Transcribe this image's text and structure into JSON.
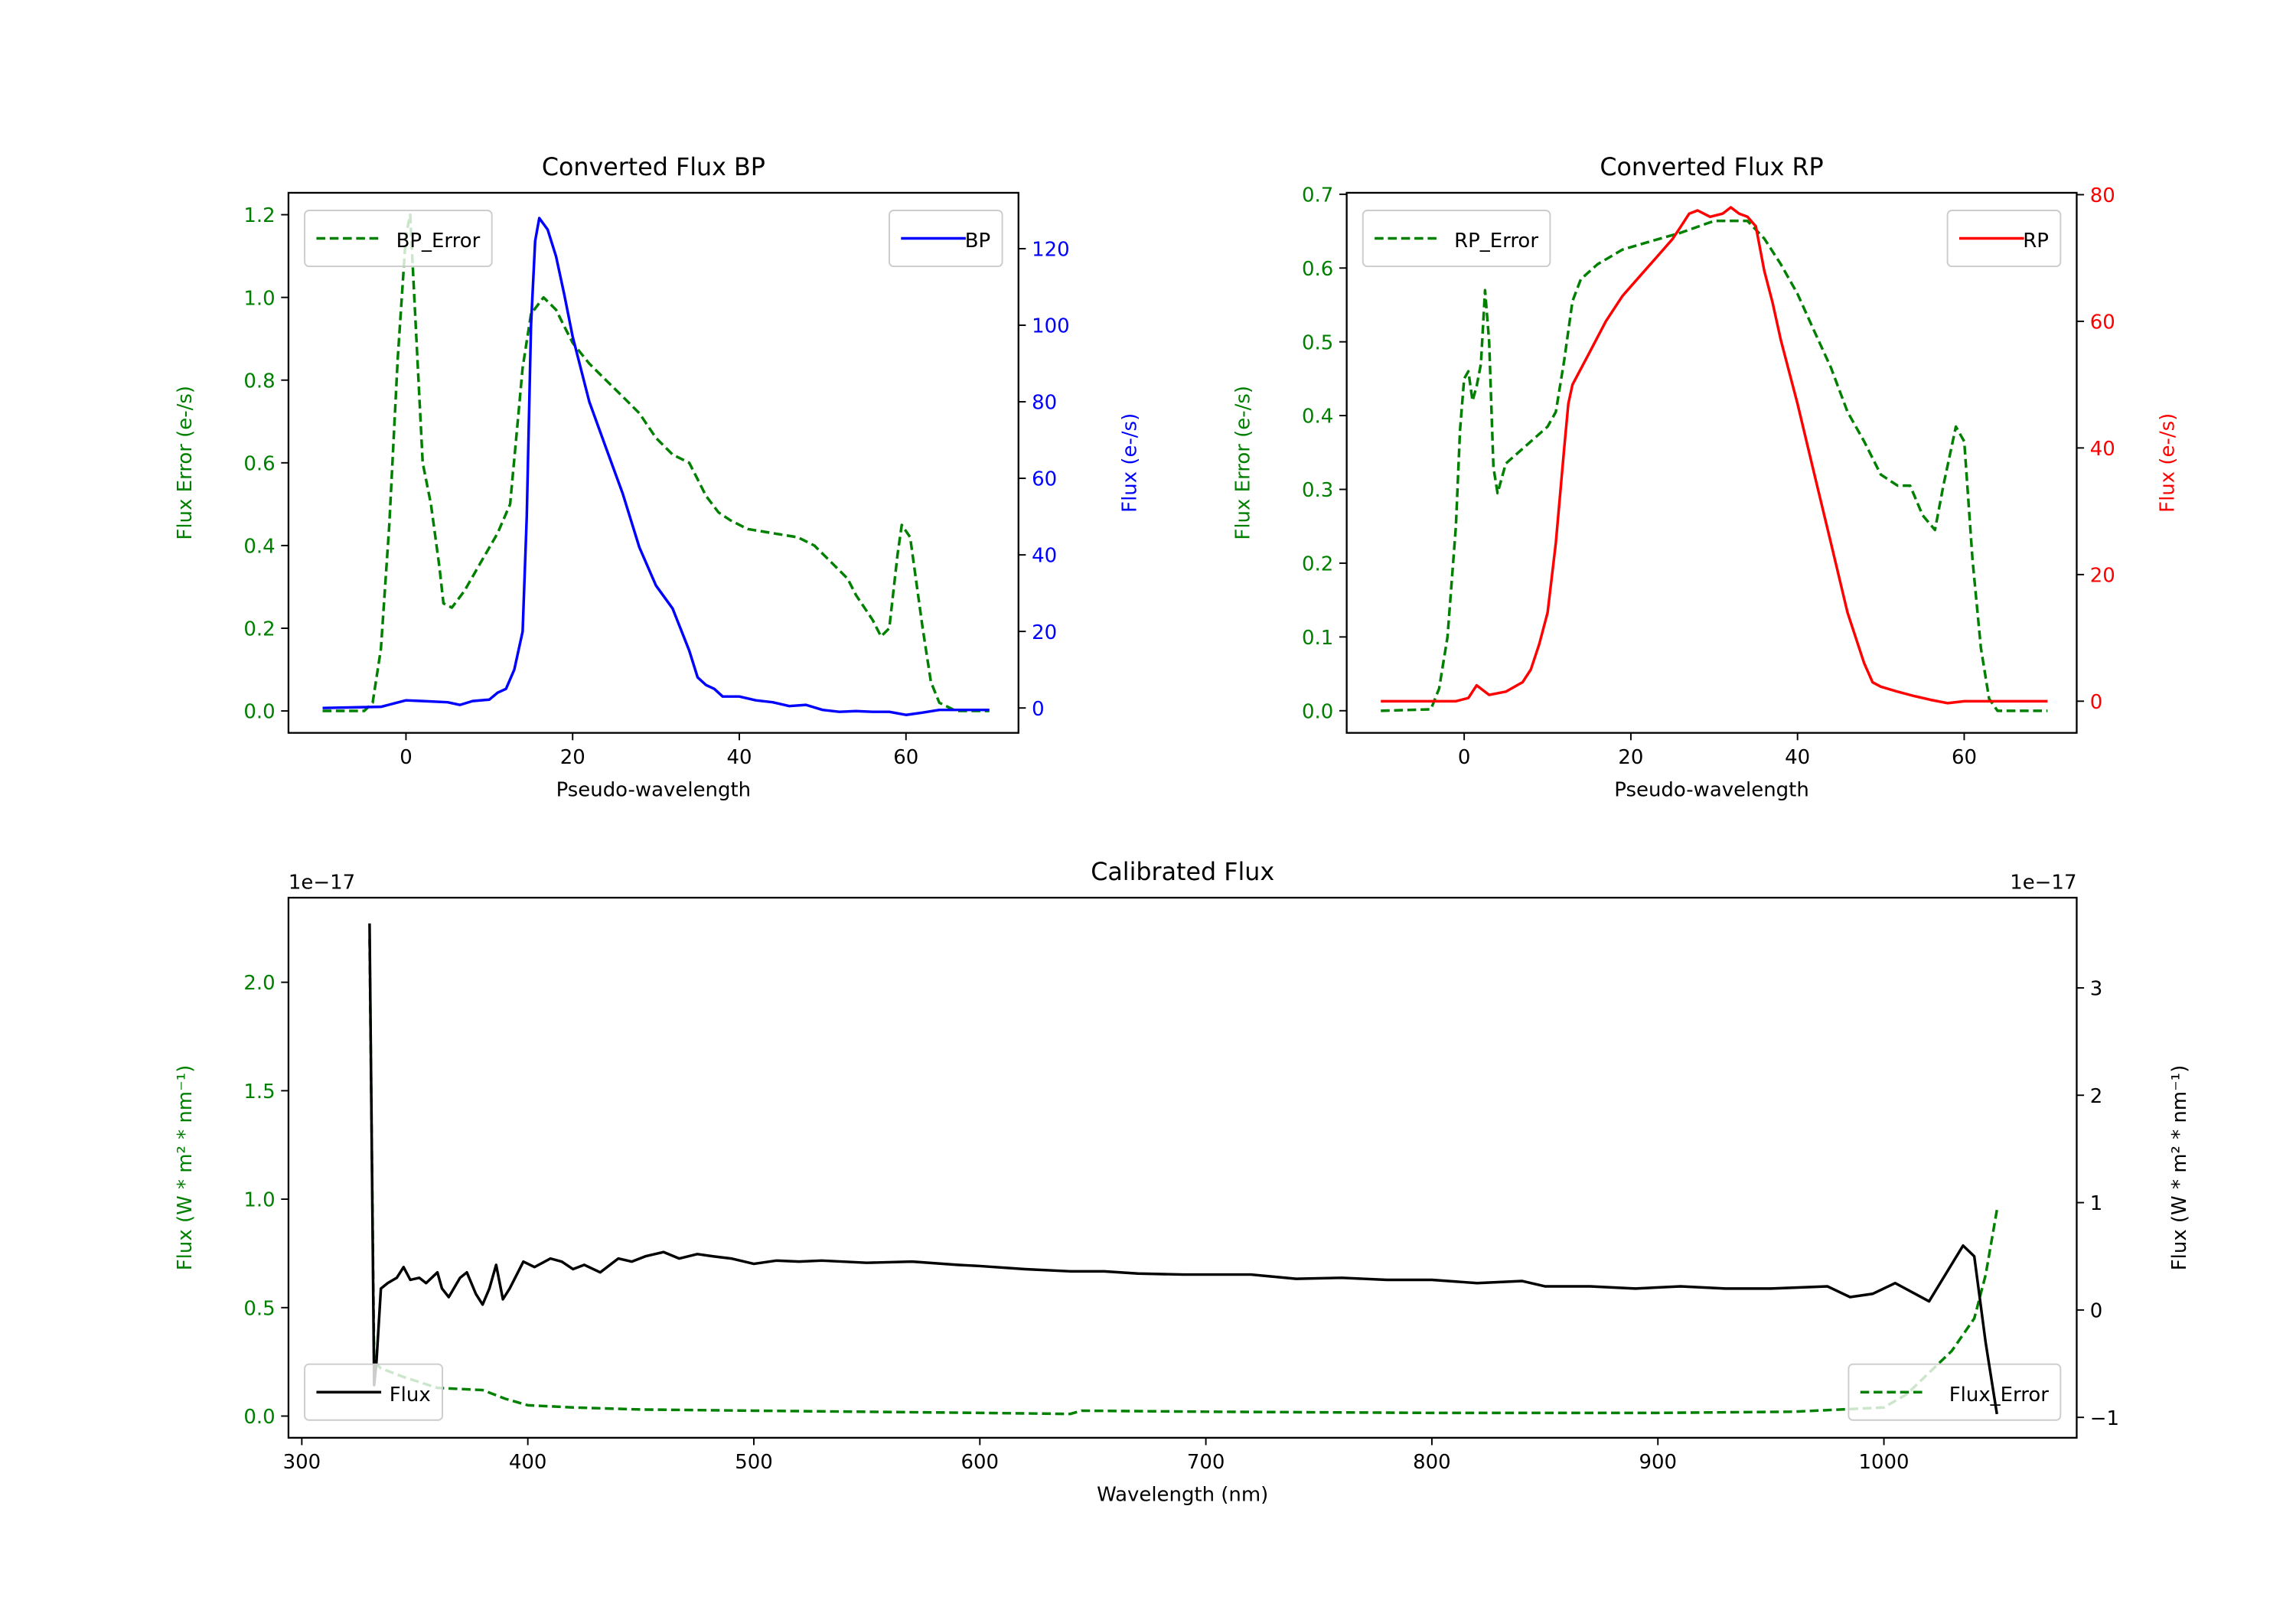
{
  "colors": {
    "bp": "#0000ff",
    "rp": "#ff0000",
    "error": "#008000",
    "flux": "#000000",
    "axis": "#000000",
    "legend_border": "#cccccc"
  },
  "chart_data": [
    {
      "id": "bp",
      "type": "line",
      "title": "Converted Flux BP",
      "xlabel": "Pseudo-wavelength",
      "ylabel_left": "Flux Error (e-/s)",
      "ylabel_right": "Flux (e-/s)",
      "xlim": [
        -14.1,
        73.5
      ],
      "ylim_left": [
        -0.053,
        1.253
      ],
      "ylim_right": [
        -6.5,
        134.6
      ],
      "xticks": [
        0,
        20,
        40,
        60
      ],
      "xtick_labels": [
        "0",
        "20",
        "40",
        "60"
      ],
      "yticks_left": [
        0,
        0.2,
        0.4,
        0.6,
        0.8,
        1.0,
        1.2
      ],
      "ytick_labels_left": [
        "0.0",
        "0.2",
        "0.4",
        "0.6",
        "0.8",
        "1.0",
        "1.2"
      ],
      "yticks_right": [
        0,
        20,
        40,
        60,
        80,
        100,
        120
      ],
      "ytick_labels_right": [
        "0",
        "20",
        "40",
        "60",
        "80",
        "100",
        "120"
      ],
      "left_color": "#008000",
      "right_color": "#0000ff",
      "legend_left": {
        "label": "BP_Error",
        "placement": "upper-left"
      },
      "legend_right": {
        "label": "BP",
        "placement": "upper-right"
      },
      "series_left": {
        "name": "BP_Error",
        "style": "dashed",
        "color": "#008000",
        "x": [
          -10,
          -5,
          -4,
          -3,
          -2,
          -1,
          0,
          0.5,
          1,
          2,
          3,
          4,
          4.5,
          5.5,
          7,
          9,
          11,
          12.5,
          13.5,
          14,
          15,
          16.5,
          18,
          19,
          20,
          22,
          24,
          26,
          28,
          30,
          32,
          34,
          35,
          36,
          37.5,
          39,
          41,
          44,
          47,
          49,
          51,
          53,
          54,
          55,
          56,
          57,
          58,
          59,
          59.5,
          60.5,
          62,
          63,
          64,
          66,
          70
        ],
        "y": [
          0,
          0,
          0.02,
          0.15,
          0.45,
          0.85,
          1.15,
          1.2,
          1.0,
          0.6,
          0.5,
          0.35,
          0.26,
          0.25,
          0.29,
          0.36,
          0.43,
          0.5,
          0.72,
          0.83,
          0.96,
          1.0,
          0.97,
          0.93,
          0.89,
          0.84,
          0.8,
          0.76,
          0.72,
          0.66,
          0.62,
          0.6,
          0.56,
          0.52,
          0.48,
          0.46,
          0.44,
          0.43,
          0.42,
          0.4,
          0.36,
          0.32,
          0.28,
          0.25,
          0.22,
          0.18,
          0.2,
          0.38,
          0.45,
          0.42,
          0.2,
          0.07,
          0.02,
          0,
          0
        ]
      },
      "series_right": {
        "name": "BP",
        "style": "solid",
        "color": "#0000ff",
        "x": [
          -10,
          -3,
          0,
          2,
          5,
          6.5,
          8,
          10,
          11,
          12,
          13,
          14,
          14.5,
          15,
          15.5,
          16,
          17,
          18,
          19,
          20,
          22,
          24,
          26,
          28,
          30,
          32,
          34,
          35,
          36,
          37,
          38,
          40,
          42,
          44,
          46,
          48,
          50,
          52,
          54,
          56,
          58,
          60,
          62,
          64,
          70
        ],
        "y": [
          0,
          0.3,
          2,
          1.8,
          1.5,
          0.8,
          1.8,
          2.2,
          4,
          5,
          10,
          20,
          50,
          100,
          122,
          128,
          125,
          118,
          108,
          97,
          80,
          68,
          56,
          42,
          32,
          26,
          15,
          8,
          6,
          5,
          3,
          3,
          2,
          1.5,
          0.5,
          0.8,
          -0.5,
          -1,
          -0.8,
          -1,
          -1,
          -1.8,
          -1.2,
          -0.5,
          -0.5
        ]
      }
    },
    {
      "id": "rp",
      "type": "line",
      "title": "Converted Flux RP",
      "xlabel": "Pseudo-wavelength",
      "ylabel_left": "Flux Error (e-/s)",
      "ylabel_right": "Flux (e-/s)",
      "xlim": [
        -14.1,
        73.5
      ],
      "ylim_left": [
        -0.03,
        0.702
      ],
      "ylim_right": [
        -5.0,
        80.3
      ],
      "xticks": [
        0,
        20,
        40,
        60
      ],
      "xtick_labels": [
        "0",
        "20",
        "40",
        "60"
      ],
      "yticks_left": [
        0,
        0.1,
        0.2,
        0.3,
        0.4,
        0.5,
        0.6,
        0.7
      ],
      "ytick_labels_left": [
        "0.0",
        "0.1",
        "0.2",
        "0.3",
        "0.4",
        "0.5",
        "0.6",
        "0.7"
      ],
      "yticks_right": [
        0,
        20,
        40,
        60,
        80
      ],
      "ytick_labels_right": [
        "0",
        "20",
        "40",
        "60",
        "80"
      ],
      "left_color": "#008000",
      "right_color": "#ff0000",
      "legend_left": {
        "label": "RP_Error",
        "placement": "upper-left"
      },
      "legend_right": {
        "label": "RP",
        "placement": "upper-right"
      },
      "series_left": {
        "name": "RP_Error",
        "style": "dashed",
        "color": "#008000",
        "x": [
          -10,
          -4,
          -3,
          -2,
          -1,
          -0.5,
          0,
          0.5,
          1,
          1.5,
          2,
          2.5,
          3,
          3.5,
          4,
          5,
          8,
          10,
          11,
          12,
          13,
          14,
          16,
          19,
          22,
          26,
          30,
          34,
          36,
          38,
          40,
          42,
          44,
          46,
          48,
          50,
          52,
          53.5,
          55,
          56.5,
          57.5,
          59,
          60,
          61,
          62,
          63,
          64,
          70
        ],
        "y": [
          0,
          0.002,
          0.03,
          0.1,
          0.25,
          0.38,
          0.45,
          0.46,
          0.42,
          0.44,
          0.47,
          0.57,
          0.5,
          0.33,
          0.295,
          0.335,
          0.365,
          0.385,
          0.405,
          0.475,
          0.555,
          0.585,
          0.605,
          0.625,
          0.635,
          0.648,
          0.664,
          0.664,
          0.64,
          0.605,
          0.565,
          0.515,
          0.465,
          0.405,
          0.365,
          0.32,
          0.305,
          0.305,
          0.265,
          0.245,
          0.305,
          0.385,
          0.365,
          0.205,
          0.085,
          0.016,
          0,
          0
        ]
      },
      "series_right": {
        "name": "RP",
        "style": "solid",
        "color": "#ff0000",
        "x": [
          -10,
          -1,
          0.5,
          1.5,
          3,
          5,
          7,
          8,
          9,
          10,
          11,
          12,
          12.5,
          13,
          15,
          17,
          19,
          21,
          23,
          25,
          26,
          27,
          28,
          29.5,
          31,
          32,
          33,
          34,
          35,
          36,
          37,
          38,
          40,
          42,
          44,
          46,
          48,
          49,
          50,
          52,
          54,
          56,
          58,
          60,
          70
        ],
        "y": [
          0,
          0,
          0.5,
          2.5,
          1,
          1.5,
          3,
          5,
          9,
          14,
          25,
          40,
          47,
          50,
          55,
          60,
          64,
          67,
          70,
          73,
          75,
          77,
          77.5,
          76.5,
          77,
          78,
          77,
          76.5,
          75,
          68,
          63,
          57,
          47,
          36,
          25,
          14,
          6,
          3,
          2.3,
          1.5,
          0.8,
          0.2,
          -0.3,
          0,
          0
        ]
      }
    },
    {
      "id": "calibrated",
      "type": "line",
      "title": "Calibrated Flux",
      "xlabel": "Wavelength (nm)",
      "ylabel_left": "Flux (W * m² * nm⁻¹)",
      "ylabel_right": "Flux (W * m² * nm⁻¹)",
      "offset_left": "1e−17",
      "offset_right": "1e−17",
      "xlim": [
        294.1,
        1085.3
      ],
      "ylim_left": [
        -0.1,
        2.39
      ],
      "ylim_right": [
        -1.19,
        3.84
      ],
      "xticks": [
        300,
        400,
        500,
        600,
        700,
        800,
        900,
        1000
      ],
      "xtick_labels": [
        "300",
        "400",
        "500",
        "600",
        "700",
        "800",
        "900",
        "1000"
      ],
      "yticks_left": [
        0,
        0.5,
        1.0,
        1.5,
        2.0
      ],
      "ytick_labels_left": [
        "0.0",
        "0.5",
        "1.0",
        "1.5",
        "2.0"
      ],
      "yticks_right": [
        -1,
        0,
        1,
        2,
        3
      ],
      "ytick_labels_right": [
        "−1",
        "0",
        "1",
        "2",
        "3"
      ],
      "left_color": "#008000",
      "right_color": "#000000",
      "legend_left": {
        "label": "Flux_Error",
        "placement": "lower-right"
      },
      "legend_right": {
        "label": "Flux",
        "placement": "lower-left"
      },
      "series_left": {
        "name": "Flux_Error",
        "style": "dashed",
        "color": "#008000",
        "x": [
          330,
          332,
          335,
          345,
          360,
          380,
          390,
          400,
          420,
          450,
          500,
          600,
          640,
          645,
          700,
          800,
          900,
          960,
          1000,
          1010,
          1020,
          1030,
          1040,
          1045,
          1050
        ],
        "y": [
          2.2,
          0.25,
          0.22,
          0.18,
          0.13,
          0.12,
          0.08,
          0.05,
          0.04,
          0.03,
          0.025,
          0.015,
          0.01,
          0.025,
          0.02,
          0.015,
          0.015,
          0.02,
          0.04,
          0.1,
          0.2,
          0.3,
          0.45,
          0.65,
          0.95
        ]
      },
      "series_right": {
        "name": "Flux",
        "style": "solid",
        "color": "#000000",
        "x": [
          330,
          332,
          333,
          335,
          338,
          342,
          345,
          348,
          352,
          355,
          360,
          362,
          365,
          370,
          373,
          377,
          380,
          383,
          386,
          389,
          392,
          398,
          403,
          410,
          415,
          420,
          425,
          432,
          440,
          446,
          452,
          460,
          467,
          475,
          482,
          490,
          500,
          510,
          520,
          530,
          550,
          570,
          590,
          600,
          620,
          640,
          655,
          670,
          690,
          720,
          740,
          760,
          780,
          800,
          820,
          840,
          850,
          870,
          890,
          910,
          930,
          950,
          975,
          985,
          995,
          1005,
          1020,
          1035,
          1040,
          1045,
          1050
        ],
        "y": [
          3.6,
          -0.7,
          -0.5,
          0.2,
          0.25,
          0.3,
          0.4,
          0.28,
          0.3,
          0.25,
          0.35,
          0.2,
          0.12,
          0.3,
          0.35,
          0.15,
          0.05,
          0.2,
          0.42,
          0.1,
          0.2,
          0.45,
          0.4,
          0.48,
          0.45,
          0.38,
          0.42,
          0.35,
          0.48,
          0.45,
          0.5,
          0.54,
          0.48,
          0.52,
          0.5,
          0.48,
          0.43,
          0.46,
          0.45,
          0.46,
          0.44,
          0.45,
          0.42,
          0.41,
          0.38,
          0.36,
          0.36,
          0.34,
          0.33,
          0.33,
          0.29,
          0.3,
          0.28,
          0.28,
          0.25,
          0.27,
          0.22,
          0.22,
          0.2,
          0.22,
          0.2,
          0.2,
          0.22,
          0.12,
          0.15,
          0.25,
          0.08,
          0.6,
          0.5,
          -0.3,
          -0.97
        ]
      }
    }
  ]
}
